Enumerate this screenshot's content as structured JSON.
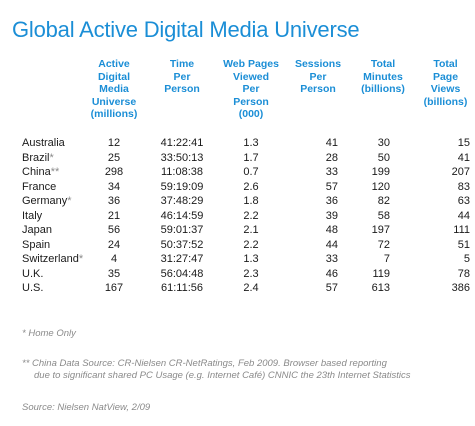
{
  "title": "Global Active Digital Media Universe",
  "columns": [
    {
      "id": "universe",
      "label_lines": [
        "Active",
        "Digital",
        "Media",
        "Universe",
        "(millions)"
      ]
    },
    {
      "id": "time",
      "label_lines": [
        "Time",
        "Per",
        "Person"
      ]
    },
    {
      "id": "webpages",
      "label_lines": [
        "Web Pages",
        "Viewed",
        "Per",
        "Person",
        "(000)"
      ]
    },
    {
      "id": "sessions",
      "label_lines": [
        "Sessions",
        "Per",
        "Person"
      ]
    },
    {
      "id": "minutes",
      "label_lines": [
        "Total",
        "Minutes",
        "(billions)"
      ]
    },
    {
      "id": "pageviews",
      "label_lines": [
        "Total",
        "Page",
        "Views",
        "(billions)"
      ]
    }
  ],
  "rows": [
    {
      "country": "Australia",
      "asterisk": "",
      "universe": "12",
      "time": "41:22:41",
      "webpages": "1.3",
      "sessions": "41",
      "minutes": "30",
      "pageviews": "15"
    },
    {
      "country": "Brazil",
      "asterisk": "*",
      "universe": "25",
      "time": "33:50:13",
      "webpages": "1.7",
      "sessions": "28",
      "minutes": "50",
      "pageviews": "41"
    },
    {
      "country": "China",
      "asterisk": "**",
      "universe": "298",
      "time": "11:08:38",
      "webpages": "0.7",
      "sessions": "33",
      "minutes": "199",
      "pageviews": "207"
    },
    {
      "country": "France",
      "asterisk": "",
      "universe": "34",
      "time": "59:19:09",
      "webpages": "2.6",
      "sessions": "57",
      "minutes": "120",
      "pageviews": "83"
    },
    {
      "country": "Germany",
      "asterisk": "*",
      "universe": "36",
      "time": "37:48:29",
      "webpages": "1.8",
      "sessions": "36",
      "minutes": "82",
      "pageviews": "63"
    },
    {
      "country": "Italy",
      "asterisk": "",
      "universe": "21",
      "time": "46:14:59",
      "webpages": "2.2",
      "sessions": "39",
      "minutes": "58",
      "pageviews": "44"
    },
    {
      "country": "Japan",
      "asterisk": "",
      "universe": "56",
      "time": "59:01:37",
      "webpages": "2.1",
      "sessions": "48",
      "minutes": "197",
      "pageviews": "111"
    },
    {
      "country": "Spain",
      "asterisk": "",
      "universe": "24",
      "time": "50:37:52",
      "webpages": "2.2",
      "sessions": "44",
      "minutes": "72",
      "pageviews": "51"
    },
    {
      "country": "Switzerland",
      "asterisk": "*",
      "universe": "4",
      "time": "31:27:47",
      "webpages": "1.3",
      "sessions": "33",
      "minutes": "7",
      "pageviews": "5"
    },
    {
      "country": "U.K.",
      "asterisk": "",
      "universe": "35",
      "time": "56:04:48",
      "webpages": "2.3",
      "sessions": "46",
      "minutes": "119",
      "pageviews": "78"
    },
    {
      "country": "U.S.",
      "asterisk": "",
      "universe": "167",
      "time": "61:11:56",
      "webpages": "2.4",
      "sessions": "57",
      "minutes": "613",
      "pageviews": "386"
    }
  ],
  "notes": {
    "home_only": "* Home Only",
    "china_line1": "** China Data Source: CR-Nielsen CR-NetRatings, Feb 2009.  Browser based reporting",
    "china_line2": "due to significant shared PC Usage (e.g. Internet Café) CNNIC the 23th Internet Statistics",
    "source": "Source: Nielsen NatView, 2/09"
  },
  "colors": {
    "accent": "#1b8ed6",
    "note_gray": "#8a8a8a",
    "text": "#1a1a1a"
  }
}
